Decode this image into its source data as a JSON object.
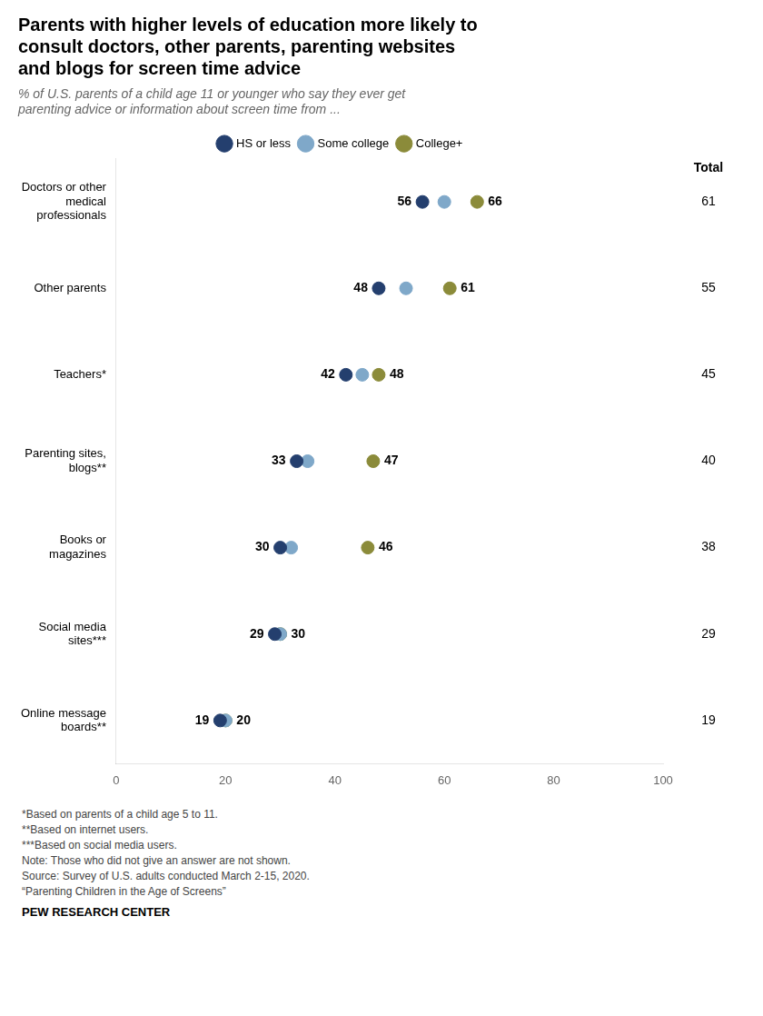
{
  "chart_data": {
    "type": "scatter",
    "orientation": "horizontal",
    "title": "Parents with higher levels of education more likely to\nconsult doctors, other parents, parenting websites\nand blogs for screen time advice",
    "subtitle": "% of U.S. parents of a child age 11 or younger who say they ever get\nparenting advice or information about screen time from ...",
    "categories": [
      "Doctors or other\nmedical\nprofessionals",
      "Other parents",
      "Teachers*",
      "Parenting sites,\nblogs**",
      "Books or\nmagazines",
      "Social media\nsites***",
      "Online message\nboards**"
    ],
    "series": [
      {
        "name": "HS or less",
        "color": "#243f6e",
        "values": [
          56,
          48,
          42,
          33,
          30,
          29,
          19
        ]
      },
      {
        "name": "Some college",
        "color": "#7fa8c9",
        "values": [
          60,
          53,
          45,
          35,
          32,
          30,
          20
        ]
      },
      {
        "name": "College+",
        "color": "#8b8b3a",
        "values": [
          66,
          61,
          48,
          47,
          46,
          30,
          20
        ]
      }
    ],
    "left_labels": [
      56,
      48,
      42,
      33,
      30,
      29,
      19
    ],
    "right_labels": [
      66,
      61,
      48,
      47,
      46,
      30,
      20
    ],
    "totals_label": "Total",
    "totals": [
      61,
      55,
      45,
      40,
      38,
      29,
      19
    ],
    "xlim": [
      0,
      100
    ],
    "xticks": [
      0,
      20,
      40,
      60,
      80,
      100
    ],
    "grid": false,
    "legend": "top",
    "marker": "circle",
    "footnotes": [
      "*Based on parents of a child age 5 to 11.",
      "**Based on internet users.",
      "***Based on social media users.",
      "Note: Those who did not give an answer are not shown.",
      "Source: Survey of U.S. adults conducted March 2-15, 2020.",
      "“Parenting Children in the Age of Screens”"
    ],
    "source_label": "PEW RESEARCH CENTER"
  }
}
